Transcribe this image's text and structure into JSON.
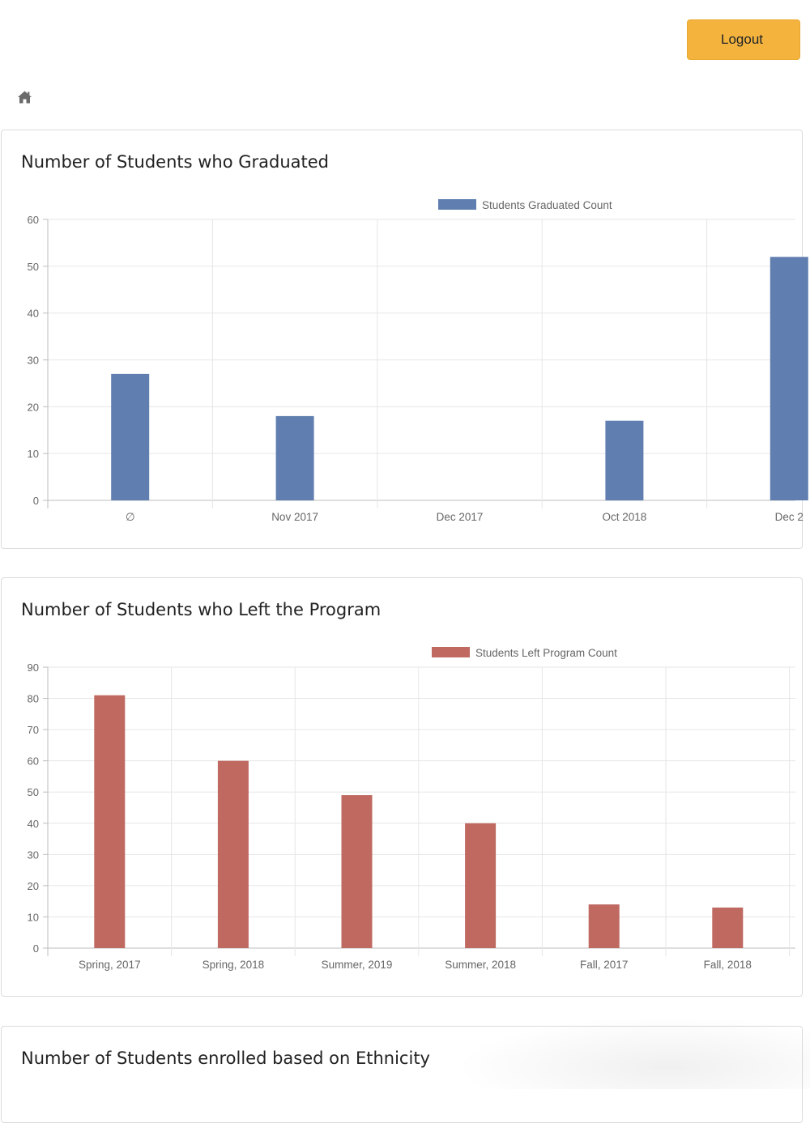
{
  "header": {
    "logout_label": "Logout"
  },
  "nav": {
    "home_icon": "home-icon"
  },
  "sections": {
    "graduated_title": "Number of Students who Graduated",
    "left_title": "Number of Students who Left the Program",
    "ethnicity_title": "Number of Students enrolled based on Ethnicity"
  },
  "chart_data": [
    {
      "type": "bar",
      "title": "Number of Students who Graduated",
      "legend": "Students Graduated Count",
      "legend_position": "top",
      "color": "#607fb0",
      "categories": [
        "∅",
        "Nov 2017",
        "Dec 2017",
        "Oct 2018",
        "Dec 2"
      ],
      "values": [
        27,
        18,
        0,
        17,
        52
      ],
      "ylim": [
        0,
        60
      ],
      "yticks": [
        0,
        10,
        20,
        30,
        40,
        50,
        60
      ],
      "grid": true
    },
    {
      "type": "bar",
      "title": "Number of Students who Left the Program",
      "legend": "Students Left Program Count",
      "legend_position": "top",
      "color": "#bf6961",
      "categories": [
        "Spring, 2017",
        "Spring, 2018",
        "Summer, 2019",
        "Summer, 2018",
        "Fall, 2017",
        "Fall, 2018"
      ],
      "values": [
        81,
        60,
        49,
        40,
        14,
        13
      ],
      "ylim": [
        0,
        90
      ],
      "yticks": [
        0,
        10,
        20,
        30,
        40,
        50,
        60,
        70,
        80,
        90
      ],
      "grid": true
    }
  ]
}
